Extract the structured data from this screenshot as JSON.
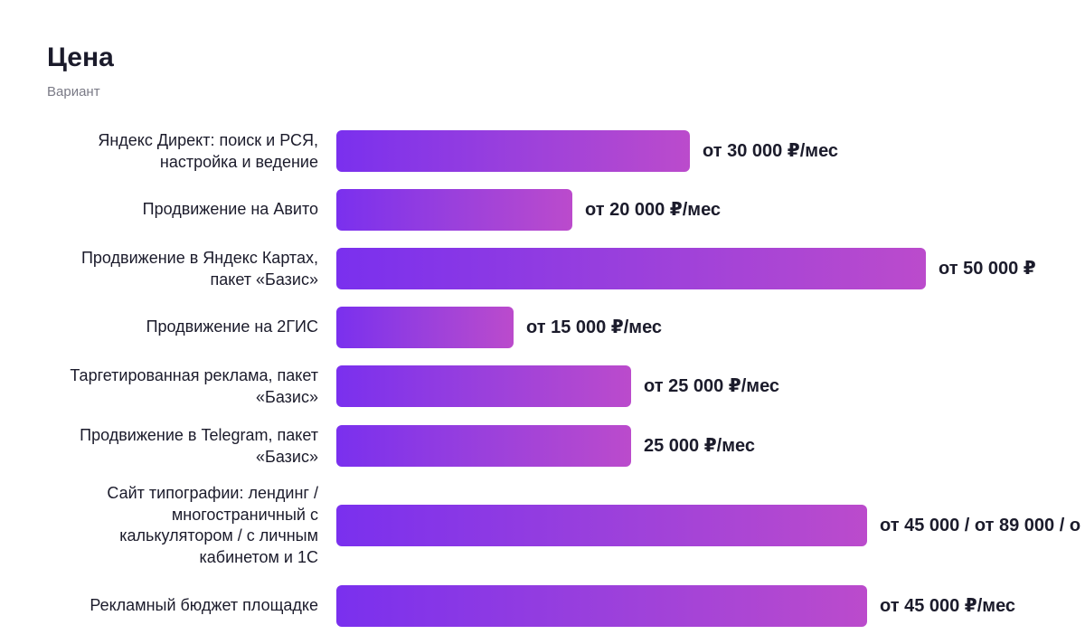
{
  "chart_data": {
    "type": "bar",
    "orientation": "horizontal",
    "title": "Цена",
    "subtitle": "Вариант",
    "categories": [
      "Яндекс Директ: поиск и РСЯ, настройка и ведение",
      "Продвижение на Авито",
      "Продвижение в Яндекс Картах, пакет «Базис»",
      "Продвижение на 2ГИС",
      "Таргетированная реклама, пакет «Базис»",
      "Продвижение в Telegram, пакет «Базис»",
      "Сайт типографии: лендинг / многостраничный с калькулятором / с личным кабинетом и 1С",
      "Рекламный бюджет площадке"
    ],
    "values": [
      30000,
      20000,
      50000,
      15000,
      25000,
      25000,
      45000,
      45000
    ],
    "value_labels": [
      "от 30 000 ₽/мес",
      "от 20 000 ₽/мес",
      "от 50 000 ₽",
      "от 15 000 ₽/мес",
      "от 25 000 ₽/мес",
      "25 000 ₽/мес",
      "от 45 000 / от 89 000 / о",
      "от 45 000 ₽/мес"
    ],
    "xlim": [
      0,
      50000
    ],
    "grid": false,
    "colors": {
      "bar_start": "#7a30ee",
      "bar_end": "#bb4bcc",
      "text": "#1b1b2b",
      "subtitle": "#7a7a86"
    }
  }
}
